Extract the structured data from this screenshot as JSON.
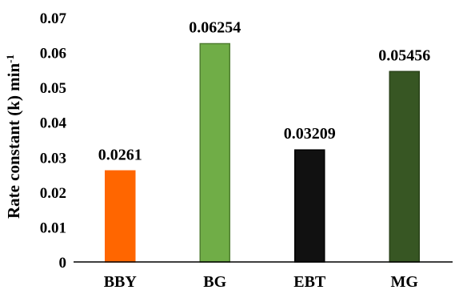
{
  "chart_data": {
    "type": "bar",
    "title": "",
    "xlabel": "",
    "ylabel": "Rate constant (k) min",
    "ylabel_superscript": "-1",
    "categories": [
      "BBY",
      "BG",
      "EBT",
      "MG"
    ],
    "values": [
      0.0261,
      0.06254,
      0.03209,
      0.05456
    ],
    "data_labels": [
      "0.0261",
      "0.06254",
      "0.03209",
      "0.05456"
    ],
    "colors": [
      "#ff6600",
      "#70ad47",
      "#111111",
      "#375623"
    ],
    "bar_borders": [
      "#ff6600",
      "#507e32",
      "#000000",
      "#2a4219"
    ],
    "ylim": [
      0,
      0.07
    ],
    "yticks": [
      0,
      0.01,
      0.02,
      0.03,
      0.04,
      0.05,
      0.06,
      0.07
    ],
    "ytick_labels": [
      "0",
      "0.01",
      "0.02",
      "0.03",
      "0.04",
      "0.05",
      "0.06",
      "0.07"
    ],
    "grid": false,
    "legend": "none"
  }
}
